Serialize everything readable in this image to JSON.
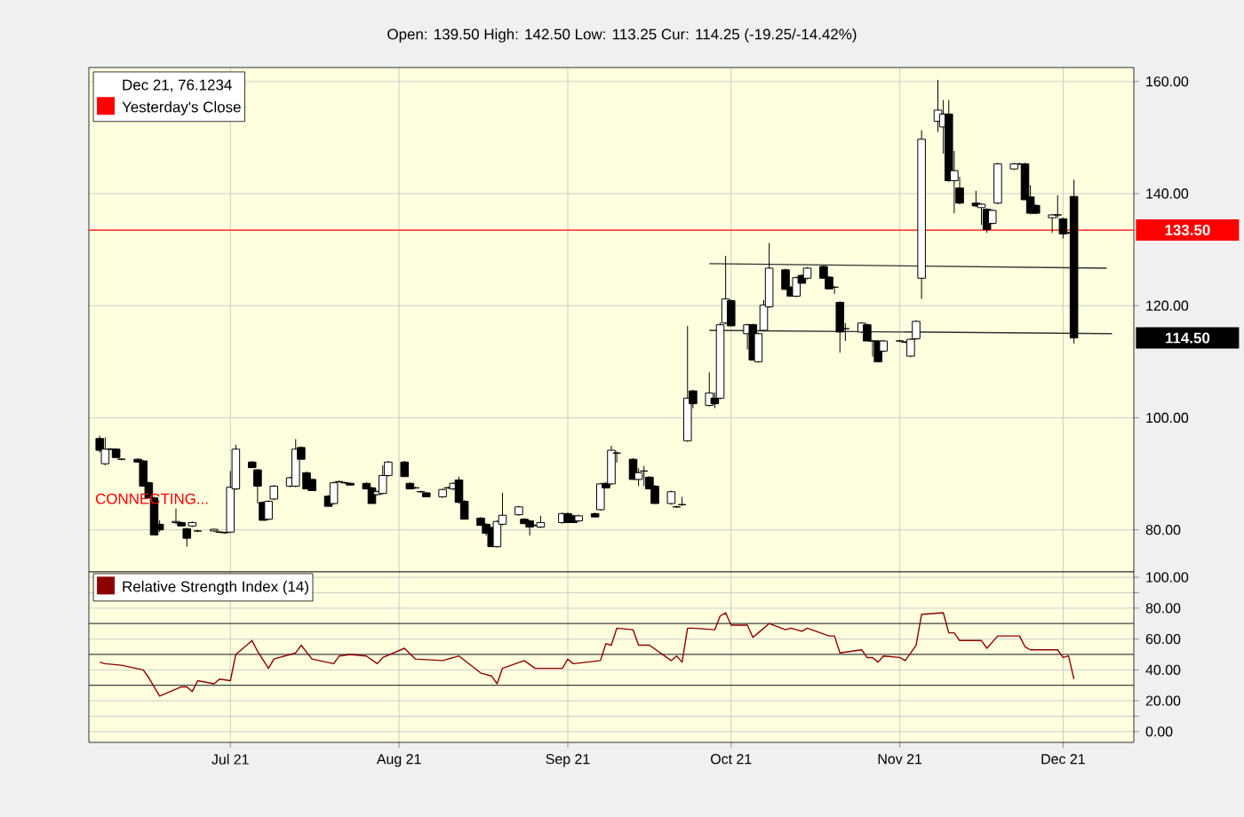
{
  "chart_data": [
    {
      "type": "candlestick",
      "subtitle": "Open: 139.50 High: 142.50 Low: 113.25 Cur: 114.25 (-19.25/-14.42%)",
      "x": [
        "2021-06-07",
        "2021-06-08",
        "2021-06-09",
        "2021-06-10",
        "2021-06-11",
        "2021-06-14",
        "2021-06-15",
        "2021-06-16",
        "2021-06-17",
        "2021-06-18",
        "2021-06-21",
        "2021-06-22",
        "2021-06-23",
        "2021-06-24",
        "2021-06-25",
        "2021-06-28",
        "2021-06-29",
        "2021-06-30",
        "2021-07-01",
        "2021-07-02",
        "2021-07-05",
        "2021-07-06",
        "2021-07-07",
        "2021-07-08",
        "2021-07-09",
        "2021-07-12",
        "2021-07-13",
        "2021-07-14",
        "2021-07-15",
        "2021-07-16",
        "2021-07-19",
        "2021-07-20",
        "2021-07-21",
        "2021-07-22",
        "2021-07-23",
        "2021-07-26",
        "2021-07-27",
        "2021-07-28",
        "2021-07-29",
        "2021-07-30",
        "2021-08-02",
        "2021-08-03",
        "2021-08-04",
        "2021-08-05",
        "2021-08-06",
        "2021-08-09",
        "2021-08-10",
        "2021-08-11",
        "2021-08-12",
        "2021-08-13",
        "2021-08-16",
        "2021-08-17",
        "2021-08-18",
        "2021-08-19",
        "2021-08-20",
        "2021-08-23",
        "2021-08-24",
        "2021-08-25",
        "2021-08-26",
        "2021-08-27",
        "2021-08-31",
        "2021-09-01",
        "2021-09-02",
        "2021-09-03",
        "2021-09-06",
        "2021-09-07",
        "2021-09-08",
        "2021-09-09",
        "2021-09-10",
        "2021-09-13",
        "2021-09-14",
        "2021-09-15",
        "2021-09-16",
        "2021-09-17",
        "2021-09-20",
        "2021-09-21",
        "2021-09-22",
        "2021-09-23",
        "2021-09-24",
        "2021-09-27",
        "2021-09-28",
        "2021-09-29",
        "2021-09-30",
        "2021-10-01",
        "2021-10-04",
        "2021-10-05",
        "2021-10-06",
        "2021-10-07",
        "2021-10-08",
        "2021-10-11",
        "2021-10-12",
        "2021-10-13",
        "2021-10-14",
        "2021-10-15",
        "2021-10-18",
        "2021-10-19",
        "2021-10-20",
        "2021-10-21",
        "2021-10-22",
        "2021-10-25",
        "2021-10-26",
        "2021-10-27",
        "2021-10-28",
        "2021-10-29",
        "2021-11-01",
        "2021-11-02",
        "2021-11-03",
        "2021-11-04",
        "2021-11-05",
        "2021-11-08",
        "2021-11-09",
        "2021-11-10",
        "2021-11-11",
        "2021-11-12",
        "2021-11-15",
        "2021-11-16",
        "2021-11-17",
        "2021-11-18",
        "2021-11-19",
        "2021-11-22",
        "2021-11-23",
        "2021-11-24",
        "2021-11-25",
        "2021-11-26",
        "2021-11-29",
        "2021-11-30",
        "2021-12-01",
        "2021-12-02",
        "2021-12-03"
      ],
      "ohlc": [
        [
          96.3,
          96.8,
          93.8,
          94.2
        ],
        [
          91.8,
          96.5,
          91.5,
          94.4
        ],
        [
          94.4,
          94.6,
          94.2,
          94.4
        ],
        [
          94.4,
          94.6,
          92.9,
          92.9
        ],
        [
          92.6,
          92.8,
          92.4,
          92.6
        ],
        [
          92.6,
          92.8,
          92.1,
          92.1
        ],
        [
          92.3,
          92.5,
          87.8,
          87.8
        ],
        [
          88.4,
          88.6,
          85.7,
          85.7
        ],
        [
          85.7,
          85.9,
          79.1,
          79.1
        ],
        [
          81.0,
          81.7,
          79.6,
          80.0
        ],
        [
          81.3,
          83.8,
          81.0,
          81.5
        ],
        [
          81.3,
          81.5,
          80.7,
          80.7
        ],
        [
          80.2,
          80.4,
          77.0,
          78.5
        ],
        [
          80.7,
          81.5,
          80.5,
          81.3
        ],
        [
          79.8,
          80.0,
          79.6,
          79.8
        ],
        [
          79.8,
          80.2,
          79.6,
          80.1
        ],
        [
          79.6,
          79.8,
          79.4,
          79.6
        ],
        [
          79.5,
          79.7,
          79.3,
          79.5
        ],
        [
          79.6,
          90.5,
          79.4,
          87.6
        ],
        [
          87.3,
          95.2,
          87.1,
          94.4
        ],
        [
          92.1,
          92.3,
          91.1,
          91.1
        ],
        [
          90.7,
          90.9,
          84.7,
          87.8
        ],
        [
          84.9,
          85.1,
          81.7,
          81.7
        ],
        [
          81.9,
          85.3,
          81.7,
          85.1
        ],
        [
          85.5,
          88.0,
          85.3,
          87.8
        ],
        [
          87.8,
          89.5,
          87.6,
          89.3
        ],
        [
          87.8,
          96.2,
          87.6,
          94.4
        ],
        [
          94.7,
          94.9,
          92.6,
          92.6
        ],
        [
          90.2,
          90.4,
          87.3,
          87.3
        ],
        [
          89.0,
          89.2,
          87.0,
          87.0
        ],
        [
          86.0,
          86.2,
          84.2,
          84.2
        ],
        [
          84.7,
          88.6,
          84.5,
          88.4
        ],
        [
          88.6,
          88.8,
          88.4,
          88.6
        ],
        [
          88.4,
          88.6,
          88.2,
          88.4
        ],
        [
          88.3,
          88.5,
          88.0,
          88.0
        ],
        [
          88.3,
          88.5,
          87.3,
          87.3
        ],
        [
          87.5,
          87.7,
          84.7,
          84.7
        ],
        [
          86.3,
          87.0,
          86.1,
          86.8
        ],
        [
          86.5,
          91.5,
          86.3,
          89.7
        ],
        [
          89.7,
          92.3,
          89.5,
          92.1
        ],
        [
          92.1,
          92.3,
          89.5,
          89.5
        ],
        [
          88.3,
          88.5,
          87.3,
          87.3
        ],
        [
          87.5,
          87.7,
          87.3,
          87.5
        ],
        [
          86.8,
          87.0,
          86.6,
          86.8
        ],
        [
          86.6,
          86.8,
          85.9,
          85.9
        ],
        [
          85.9,
          87.4,
          85.7,
          87.2
        ],
        [
          87.5,
          87.7,
          87.3,
          87.5
        ],
        [
          87.3,
          88.5,
          87.1,
          88.3
        ],
        [
          88.9,
          89.5,
          84.7,
          84.9
        ],
        [
          85.1,
          85.3,
          81.9,
          81.9
        ],
        [
          82.1,
          82.3,
          80.8,
          80.8
        ],
        [
          81.0,
          81.2,
          79.0,
          79.4
        ],
        [
          80.4,
          80.6,
          77.0,
          77.0
        ],
        [
          77.0,
          81.7,
          76.8,
          81.5
        ],
        [
          81.0,
          86.6,
          80.8,
          82.6
        ],
        [
          82.7,
          84.3,
          82.5,
          84.1
        ],
        [
          81.9,
          82.1,
          81.1,
          81.1
        ],
        [
          81.6,
          81.8,
          79.0,
          80.5
        ],
        [
          80.8,
          81.0,
          80.6,
          80.8
        ],
        [
          80.5,
          82.5,
          80.3,
          81.3
        ],
        [
          81.3,
          83.1,
          81.1,
          82.9
        ],
        [
          82.9,
          83.1,
          81.3,
          81.3
        ],
        [
          82.5,
          82.7,
          81.3,
          81.3
        ],
        [
          81.6,
          82.7,
          81.4,
          82.5
        ],
        [
          82.9,
          83.1,
          82.3,
          82.3
        ],
        [
          83.6,
          88.4,
          83.4,
          88.2
        ],
        [
          88.3,
          88.5,
          87.5,
          87.5
        ],
        [
          88.2,
          95.0,
          88.0,
          94.2
        ],
        [
          93.7,
          94.0,
          92.0,
          93.7
        ],
        [
          92.6,
          92.8,
          89.0,
          89.0
        ],
        [
          89.0,
          91.0,
          87.8,
          90.2
        ],
        [
          90.5,
          91.4,
          87.8,
          90.5
        ],
        [
          89.4,
          89.6,
          87.3,
          87.3
        ],
        [
          87.8,
          88.0,
          84.7,
          84.7
        ],
        [
          84.7,
          87.0,
          84.5,
          86.8
        ],
        [
          84.1,
          84.3,
          83.9,
          84.1
        ],
        [
          84.5,
          85.9,
          84.3,
          84.5
        ],
        [
          95.9,
          116.4,
          95.7,
          103.5
        ],
        [
          104.8,
          105.0,
          101.7,
          102.5
        ],
        [
          102.2,
          108.1,
          102.0,
          104.4
        ],
        [
          103.5,
          104.5,
          101.7,
          102.5
        ],
        [
          103.5,
          117.0,
          103.3,
          116.6
        ],
        [
          116.9,
          128.9,
          116.7,
          121.2
        ],
        [
          120.9,
          121.1,
          116.4,
          116.4
        ],
        [
          115.0,
          116.8,
          112.2,
          116.6
        ],
        [
          116.6,
          116.8,
          110.3,
          110.3
        ],
        [
          110.0,
          115.2,
          109.8,
          115.0
        ],
        [
          115.6,
          121.0,
          115.4,
          120.1
        ],
        [
          119.8,
          131.2,
          119.6,
          126.7
        ],
        [
          126.4,
          126.6,
          122.9,
          122.9
        ],
        [
          123.3,
          123.5,
          121.7,
          121.7
        ],
        [
          121.7,
          125.2,
          121.5,
          125.0
        ],
        [
          125.4,
          125.6,
          124.0,
          124.0
        ],
        [
          124.9,
          126.9,
          124.7,
          126.7
        ],
        [
          127.0,
          127.2,
          124.9,
          124.9
        ],
        [
          125.1,
          125.3,
          123.0,
          123.0
        ],
        [
          123.3,
          123.5,
          122.1,
          123.3
        ],
        [
          120.6,
          120.8,
          111.6,
          115.3
        ],
        [
          115.9,
          116.9,
          113.7,
          115.9
        ],
        [
          115.3,
          117.1,
          115.1,
          116.9
        ],
        [
          116.6,
          116.8,
          113.7,
          113.7
        ],
        [
          113.7,
          113.9,
          110.9,
          113.7
        ],
        [
          113.7,
          113.9,
          110.0,
          110.0
        ],
        [
          111.9,
          113.9,
          111.7,
          113.7
        ],
        [
          113.7,
          113.9,
          113.5,
          113.7
        ],
        [
          113.5,
          113.7,
          113.3,
          113.5
        ],
        [
          111.0,
          114.2,
          110.8,
          114.0
        ],
        [
          114.1,
          117.4,
          113.9,
          117.2
        ],
        [
          124.9,
          151.3,
          121.2,
          149.7
        ],
        [
          152.9,
          160.3,
          151.0,
          154.9
        ],
        [
          151.9,
          156.7,
          147.1,
          154.2
        ],
        [
          154.2,
          156.7,
          142.1,
          142.3
        ],
        [
          142.3,
          147.6,
          136.5,
          144.1
        ],
        [
          141.0,
          143.0,
          138.1,
          138.3
        ],
        [
          138.3,
          140.5,
          137.6,
          137.8
        ],
        [
          137.5,
          138.3,
          134.4,
          138.1
        ],
        [
          137.2,
          137.4,
          133.0,
          133.6
        ],
        [
          134.7,
          137.2,
          134.5,
          137.0
        ],
        [
          138.3,
          145.5,
          138.1,
          145.3
        ],
        [
          144.4,
          145.5,
          144.2,
          145.3
        ],
        [
          145.3,
          145.5,
          145.1,
          145.3
        ],
        [
          145.3,
          145.5,
          138.9,
          138.9
        ],
        [
          139.4,
          141.5,
          136.3,
          136.5
        ],
        [
          137.9,
          138.1,
          136.3,
          136.5
        ],
        [
          135.7,
          136.4,
          133.0,
          136.2
        ],
        [
          136.2,
          139.7,
          135.6,
          136.2
        ],
        [
          135.5,
          135.7,
          132.0,
          132.8
        ],
        [
          133.0,
          133.2,
          132.8,
          133.0
        ],
        [
          139.5,
          142.5,
          113.25,
          114.25
        ]
      ],
      "series": [
        {
          "type": "line",
          "color": "#303030",
          "x": [
            "2021-09-27",
            "2021-12-09"
          ],
          "values": [
            127.5,
            126.7
          ]
        },
        {
          "type": "line",
          "color": "#303030",
          "x": [
            "2021-09-27",
            "2021-12-10"
          ],
          "values": [
            115.6,
            115.0
          ]
        }
      ],
      "xlim": [
        "2021-06-05",
        "2021-12-14"
      ],
      "xticks": [
        {
          "value": "2021-07-01",
          "label": null
        },
        {
          "value": "2021-08-01",
          "label": null
        },
        {
          "value": "2021-09-01",
          "label": null
        },
        {
          "value": "2021-10-01",
          "label": null
        },
        {
          "value": "2021-11-01",
          "label": null
        },
        {
          "value": "2021-12-01",
          "label": null
        }
      ],
      "ylim": [
        72.5,
        162.5
      ],
      "yticks": [
        {
          "value": 80,
          "label": "80.00"
        },
        {
          "value": 100,
          "label": "100.00"
        },
        {
          "value": 120,
          "label": "120.00"
        },
        {
          "value": 140,
          "label": "140.00"
        },
        {
          "value": 160,
          "label": "160.00"
        }
      ],
      "grid": true,
      "tick_labels": "y",
      "legend": "top left",
      "legend_title": "Dec 21, 76.1234",
      "ref_lines": [
        {
          "axis": "y",
          "value": 133.5,
          "label": "Yesterday's Close",
          "color": "#ff0000"
        }
      ],
      "annotations": [
        "CONNECTING...",
        "133.50",
        "114.50"
      ]
    },
    {
      "type": "line",
      "x": [
        "2021-06-07",
        "2021-06-08",
        "2021-06-11",
        "2021-06-15",
        "2021-06-16",
        "2021-06-18",
        "2021-06-22",
        "2021-06-23",
        "2021-06-24",
        "2021-06-25",
        "2021-06-28",
        "2021-06-29",
        "2021-07-01",
        "2021-07-02",
        "2021-07-05",
        "2021-07-06",
        "2021-07-08",
        "2021-07-09",
        "2021-07-13",
        "2021-07-14",
        "2021-07-16",
        "2021-07-20",
        "2021-07-21",
        "2021-07-23",
        "2021-07-26",
        "2021-07-28",
        "2021-07-29",
        "2021-08-02",
        "2021-08-04",
        "2021-08-09",
        "2021-08-12",
        "2021-08-16",
        "2021-08-18",
        "2021-08-19",
        "2021-08-20",
        "2021-08-24",
        "2021-08-26",
        "2021-08-31",
        "2021-09-01",
        "2021-09-02",
        "2021-09-07",
        "2021-09-08",
        "2021-09-09",
        "2021-09-10",
        "2021-09-13",
        "2021-09-14",
        "2021-09-16",
        "2021-09-20",
        "2021-09-21",
        "2021-09-22",
        "2021-09-23",
        "2021-09-24",
        "2021-09-28",
        "2021-09-29",
        "2021-09-30",
        "2021-10-01",
        "2021-10-04",
        "2021-10-05",
        "2021-10-06",
        "2021-10-08",
        "2021-10-11",
        "2021-10-12",
        "2021-10-14",
        "2021-10-15",
        "2021-10-19",
        "2021-10-20",
        "2021-10-21",
        "2021-10-25",
        "2021-10-26",
        "2021-10-27",
        "2021-10-28",
        "2021-10-29",
        "2021-11-01",
        "2021-11-02",
        "2021-11-04",
        "2021-11-05",
        "2021-11-09",
        "2021-11-10",
        "2021-11-11",
        "2021-11-12",
        "2021-11-16",
        "2021-11-17",
        "2021-11-19",
        "2021-11-23",
        "2021-11-24",
        "2021-11-25",
        "2021-11-30",
        "2021-12-01",
        "2021-12-02",
        "2021-12-03"
      ],
      "series": [
        {
          "name": "Relative Strength Index (14)",
          "color": "#8b0000",
          "values": [
            45,
            44,
            43,
            40,
            35,
            23,
            29,
            29,
            26,
            33,
            31,
            34,
            33,
            50,
            59,
            52,
            41,
            47,
            51,
            56,
            47,
            44,
            49,
            50,
            49,
            44,
            48,
            54,
            47,
            46,
            49,
            38,
            36,
            31,
            41,
            46,
            41,
            41,
            47,
            44,
            46,
            57,
            56,
            67,
            66,
            56,
            56,
            46,
            49,
            45,
            67,
            67,
            66,
            75,
            77,
            69,
            69,
            61,
            64,
            70,
            66,
            67,
            65,
            67,
            62,
            62,
            51,
            53,
            48,
            48,
            45,
            49,
            48,
            46,
            56,
            76,
            77,
            64,
            64,
            59,
            59,
            54,
            62,
            62,
            55,
            53,
            53,
            48,
            49,
            34
          ]
        }
      ],
      "xlim": [
        "2021-06-05",
        "2021-12-14"
      ],
      "xticks": [
        {
          "value": "2021-07-01",
          "label": "Jul 21"
        },
        {
          "value": "2021-08-01",
          "label": "Aug 21"
        },
        {
          "value": "2021-09-01",
          "label": "Sep 21"
        },
        {
          "value": "2021-10-01",
          "label": "Oct 21"
        },
        {
          "value": "2021-11-01",
          "label": "Nov 21"
        },
        {
          "value": "2021-12-01",
          "label": "Dec 21"
        }
      ],
      "ylim": [
        -7,
        103.5
      ],
      "yticks": [
        {
          "value": 0,
          "label": "0.00"
        },
        {
          "value": 10,
          "label": null
        },
        {
          "value": 20,
          "label": "20.00"
        },
        {
          "value": 40,
          "label": "40.00"
        },
        {
          "value": 60,
          "label": "60.00"
        },
        {
          "value": 80,
          "label": "80.00"
        },
        {
          "value": 90,
          "label": null
        },
        {
          "value": 100,
          "label": "100.00"
        }
      ],
      "grid": true,
      "legend": "top left",
      "ref_lines": [
        {
          "axis": "y",
          "value": 30,
          "color": "#404040"
        },
        {
          "axis": "y",
          "value": 50,
          "color": "#404040"
        },
        {
          "axis": "y",
          "value": 70,
          "color": "#404040"
        }
      ]
    }
  ]
}
